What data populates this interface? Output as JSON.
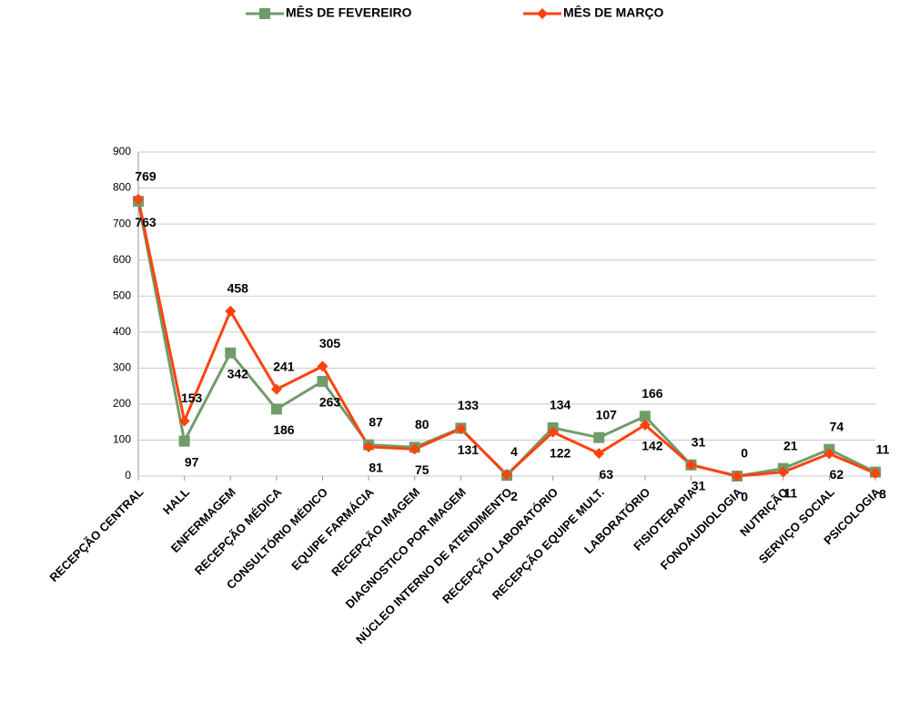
{
  "chart_data": {
    "type": "line",
    "categories": [
      "RECEPÇÃO CENTRAL",
      "HALL",
      "ENFERMAGEM",
      "RECEPÇÃO MÉDICA",
      "CONSULTÓRIO MÉDICO",
      "EQUIPE FARMÁCIA",
      "RECEPÇÃO IMAGEM",
      "DIAGNOSTICO POR IMAGEM",
      "NÚCLEO INTERNO DE ATENDIMENTO",
      "RECEPÇÃO LABORATÓRIO",
      "RECEPÇÃO EQUIPE MULT.",
      "LABORATÓRIO",
      "FISIOTERAPIA",
      "FONOAUDIOLOGIA",
      "NUTRIÇÃO",
      "SERVIÇO SOCIAL",
      "PSICOLOGIA"
    ],
    "series": [
      {
        "name": "MÊS DE FEVEREIRO",
        "color": "#6f9c6a",
        "marker": "square",
        "values": [
          763,
          97,
          342,
          186,
          263,
          87,
          80,
          133,
          2,
          134,
          107,
          166,
          31,
          0,
          21,
          74,
          11
        ]
      },
      {
        "name": "MÊS DE MARÇO",
        "color": "#ff420e",
        "marker": "diamond",
        "values": [
          769,
          153,
          458,
          241,
          305,
          81,
          75,
          131,
          4,
          122,
          63,
          142,
          31,
          0,
          11,
          62,
          8
        ]
      }
    ],
    "ylim": [
      0,
      900
    ],
    "yticks": [
      0,
      100,
      200,
      300,
      400,
      500,
      600,
      700,
      800,
      900
    ],
    "grid": true,
    "legend": "top"
  }
}
